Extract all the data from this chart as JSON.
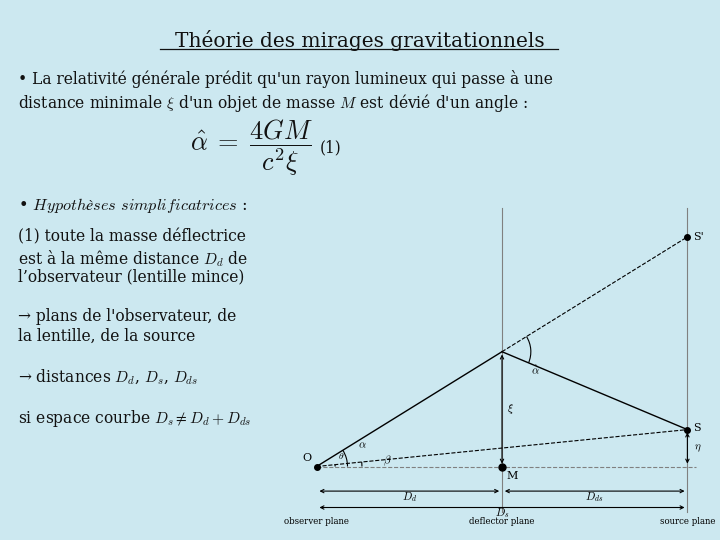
{
  "background_color": "#cce8f0",
  "title": "Théorie des mirages gravitationnels",
  "title_fontsize": 14.5,
  "body_fontsize": 11.2,
  "italic_fontsize": 11.5,
  "fig_width": 7.2,
  "fig_height": 5.4,
  "text_color": "#111111",
  "diagram_bg": "#d8eaf2",
  "diagram_border": "#777777",
  "line1": "• La relativité générale prédit qu'un rayon lumineux qui passe à une",
  "line2a": "distance minimale ",
  "line2b": " d'un objet de masse ",
  "line2c": " est dévié d'un angle :",
  "block1a": "(1) toute la masse déflectrice",
  "block1b": "est à la même distance ",
  "block1c": " de",
  "block1d": "l’observateur (lentille mince)",
  "block2": "→ plans de l’observateur, de\nla lentille, de la source",
  "block3": "→ distances ",
  "block4": "si espace courbe ",
  "observer_label": "observer plane",
  "deflector_label": "deflector plane",
  "source_label": "source plane"
}
